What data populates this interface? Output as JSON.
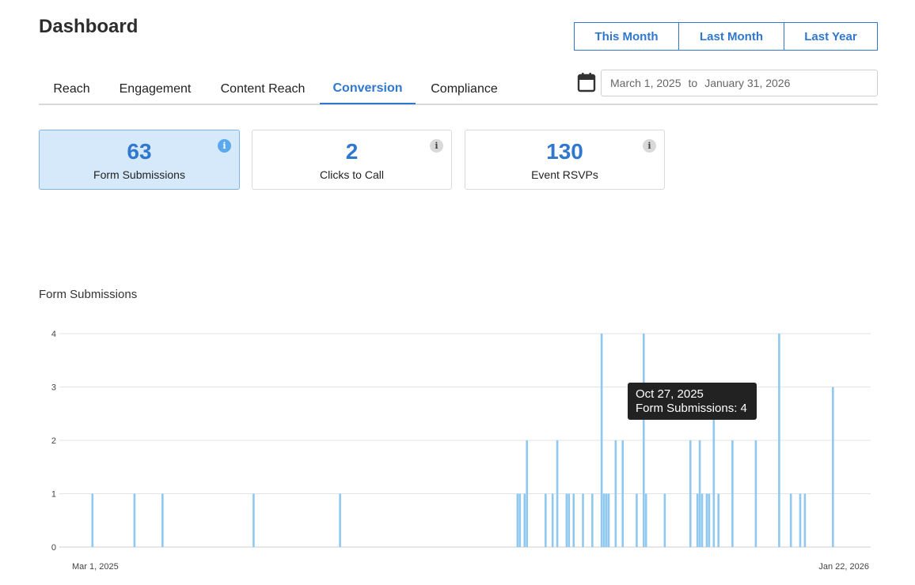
{
  "header": {
    "title": "Dashboard"
  },
  "range_buttons": [
    "This Month",
    "Last Month",
    "Last Year"
  ],
  "tabs": [
    "Reach",
    "Engagement",
    "Content Reach",
    "Conversion",
    "Compliance"
  ],
  "active_tab": "Conversion",
  "date_range": {
    "start": "March 1, 2025",
    "separator": "to",
    "end": "January 31, 2026"
  },
  "cards": [
    {
      "value": "63",
      "label": "Form Submissions",
      "selected": true
    },
    {
      "value": "2",
      "label": "Clicks to Call",
      "selected": false
    },
    {
      "value": "130",
      "label": "Event RSVPs",
      "selected": false
    }
  ],
  "icons": {
    "calendar": "calendar-icon",
    "info": "info-icon"
  },
  "colors": {
    "accent": "#2f77cf",
    "bar": "#90c8f0",
    "selected_card_bg": "#d6e9fb"
  },
  "chart_data": {
    "type": "bar",
    "title": "Form Submissions",
    "x_tick_labels": [
      "Mar 1, 2025",
      "Jan 22, 2026"
    ],
    "x_range": [
      "2025-03-01",
      "2026-01-22"
    ],
    "ylim": [
      0,
      4
    ],
    "y_ticks": [
      0,
      1,
      2,
      3,
      4
    ],
    "grid": true,
    "series": [
      {
        "name": "Form Submissions",
        "points": [
          {
            "x": "2025-03-05",
            "y": 1
          },
          {
            "x": "2025-03-23",
            "y": 1
          },
          {
            "x": "2025-04-04",
            "y": 1
          },
          {
            "x": "2025-05-13",
            "y": 1
          },
          {
            "x": "2025-06-19",
            "y": 1
          },
          {
            "x": "2025-09-03",
            "y": 1
          },
          {
            "x": "2025-09-04",
            "y": 1
          },
          {
            "x": "2025-09-06",
            "y": 1
          },
          {
            "x": "2025-09-07",
            "y": 2
          },
          {
            "x": "2025-09-15",
            "y": 1
          },
          {
            "x": "2025-09-18",
            "y": 1
          },
          {
            "x": "2025-09-20",
            "y": 2
          },
          {
            "x": "2025-09-24",
            "y": 1
          },
          {
            "x": "2025-09-25",
            "y": 1
          },
          {
            "x": "2025-09-27",
            "y": 1
          },
          {
            "x": "2025-10-01",
            "y": 1
          },
          {
            "x": "2025-10-05",
            "y": 1
          },
          {
            "x": "2025-10-09",
            "y": 4
          },
          {
            "x": "2025-10-10",
            "y": 1
          },
          {
            "x": "2025-10-11",
            "y": 1
          },
          {
            "x": "2025-10-12",
            "y": 1
          },
          {
            "x": "2025-10-15",
            "y": 2
          },
          {
            "x": "2025-10-18",
            "y": 2
          },
          {
            "x": "2025-10-24",
            "y": 1
          },
          {
            "x": "2025-10-27",
            "y": 4
          },
          {
            "x": "2025-10-28",
            "y": 1
          },
          {
            "x": "2025-11-05",
            "y": 1
          },
          {
            "x": "2025-11-16",
            "y": 2
          },
          {
            "x": "2025-11-19",
            "y": 1
          },
          {
            "x": "2025-11-20",
            "y": 2
          },
          {
            "x": "2025-11-21",
            "y": 1
          },
          {
            "x": "2025-11-23",
            "y": 1
          },
          {
            "x": "2025-11-24",
            "y": 1
          },
          {
            "x": "2025-11-26",
            "y": 3
          },
          {
            "x": "2025-11-28",
            "y": 1
          },
          {
            "x": "2025-12-04",
            "y": 2
          },
          {
            "x": "2025-12-14",
            "y": 2
          },
          {
            "x": "2025-12-24",
            "y": 4
          },
          {
            "x": "2025-12-29",
            "y": 1
          },
          {
            "x": "2026-01-02",
            "y": 1
          },
          {
            "x": "2026-01-04",
            "y": 1
          },
          {
            "x": "2026-01-16",
            "y": 3
          }
        ]
      }
    ],
    "tooltip": {
      "date": "Oct 27, 2025",
      "text": "Form Submissions: 4"
    }
  }
}
